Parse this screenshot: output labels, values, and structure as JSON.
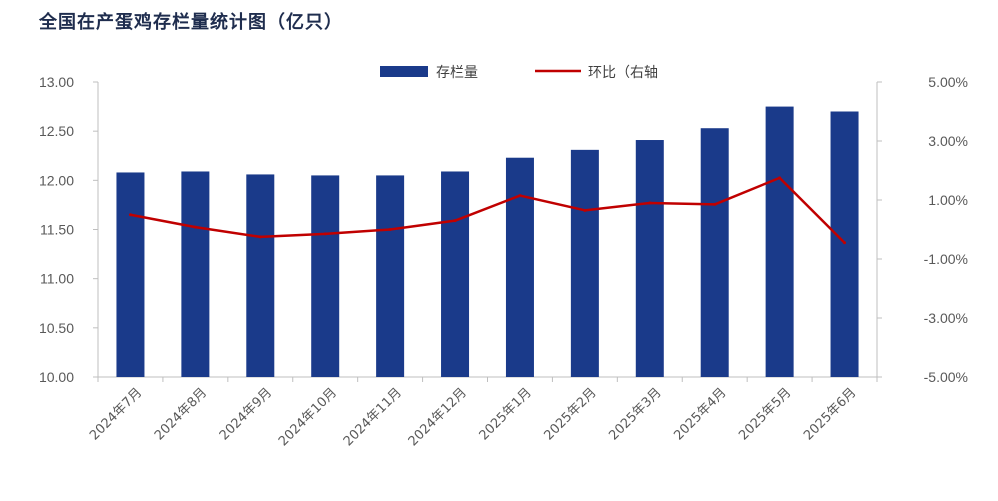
{
  "title": "全国在产蛋鸡存栏量统计图（亿只）",
  "colors": {
    "bar": "#1a3a8a",
    "line": "#c00000",
    "axis": "#bfbfbf",
    "text": "#595959"
  },
  "chart_data": {
    "type": "bar",
    "categories": [
      "2024年7月",
      "2024年8月",
      "2024年9月",
      "2024年10月",
      "2024年11月",
      "2024年12月",
      "2025年1月",
      "2025年2月",
      "2025年3月",
      "2025年4月",
      "2025年5月",
      "2025年6月"
    ],
    "series": [
      {
        "name": "存栏量",
        "type": "bar",
        "axis": "left",
        "values": [
          12.08,
          12.09,
          12.06,
          12.05,
          12.05,
          12.09,
          12.23,
          12.31,
          12.41,
          12.53,
          12.75,
          12.7
        ]
      },
      {
        "name": "环比（右轴",
        "type": "line",
        "axis": "right",
        "values": [
          0.5,
          0.08,
          -0.25,
          -0.15,
          0.0,
          0.3,
          1.15,
          0.65,
          0.9,
          0.85,
          1.75,
          -0.45
        ]
      }
    ],
    "y_left": {
      "range": [
        10.0,
        13.0
      ],
      "ticks": [
        "10.00",
        "10.50",
        "11.00",
        "11.50",
        "12.00",
        "12.50",
        "13.00"
      ]
    },
    "y_right": {
      "range": [
        -5.0,
        5.0
      ],
      "ticks": [
        "-5.00%",
        "-3.00%",
        "-1.00%",
        "1.00%",
        "3.00%",
        "5.00%"
      ]
    },
    "legend_position": "top",
    "grid": false
  }
}
